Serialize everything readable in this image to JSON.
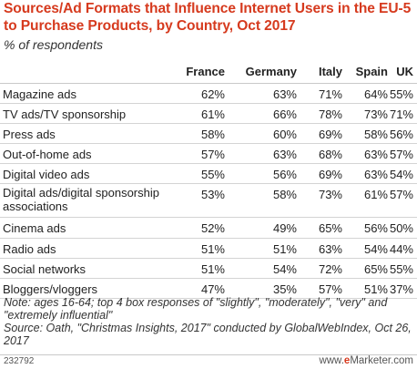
{
  "title": "Sources/Ad Formats that Influence Internet Users in the EU-5 to Purchase Products, by Country, Oct 2017",
  "subtitle": "% of respondents",
  "chart_data": {
    "type": "table",
    "title": "Sources/Ad Formats that Influence Internet Users in the EU-5 to Purchase Products, by Country, Oct 2017",
    "subtitle": "% of respondents",
    "columns": [
      "France",
      "Germany",
      "Italy",
      "Spain",
      "UK"
    ],
    "rows": [
      {
        "label": "Magazine ads",
        "values": [
          "62%",
          "63%",
          "71%",
          "64%",
          "55%"
        ]
      },
      {
        "label": "TV ads/TV sponsorship",
        "values": [
          "61%",
          "66%",
          "78%",
          "73%",
          "71%"
        ]
      },
      {
        "label": "Press ads",
        "values": [
          "58%",
          "60%",
          "69%",
          "58%",
          "56%"
        ]
      },
      {
        "label": "Out-of-home ads",
        "values": [
          "57%",
          "63%",
          "68%",
          "63%",
          "57%"
        ]
      },
      {
        "label": "Digital video ads",
        "values": [
          "55%",
          "56%",
          "69%",
          "63%",
          "54%"
        ]
      },
      {
        "label": "Digital ads/digital sponsorship associations",
        "values": [
          "53%",
          "58%",
          "73%",
          "61%",
          "57%"
        ]
      },
      {
        "label": "Cinema ads",
        "values": [
          "52%",
          "49%",
          "65%",
          "56%",
          "50%"
        ]
      },
      {
        "label": "Radio ads",
        "values": [
          "51%",
          "51%",
          "63%",
          "54%",
          "44%"
        ]
      },
      {
        "label": "Social networks",
        "values": [
          "51%",
          "54%",
          "72%",
          "65%",
          "55%"
        ]
      },
      {
        "label": "Bloggers/vloggers",
        "values": [
          "47%",
          "35%",
          "57%",
          "51%",
          "37%"
        ]
      }
    ]
  },
  "note": "Note: ages 16-64; top 4 box responses of \"slightly\", \"moderately\", \"very\" and \"extremely influential\"",
  "source": "Source: Oath, \"Christmas Insights, 2017\" conducted by GlobalWebIndex, Oct 26, 2017",
  "footer": {
    "id": "232792",
    "site_prefix": "www.",
    "site_brand": "e",
    "site_suffix": "Marketer.com"
  }
}
